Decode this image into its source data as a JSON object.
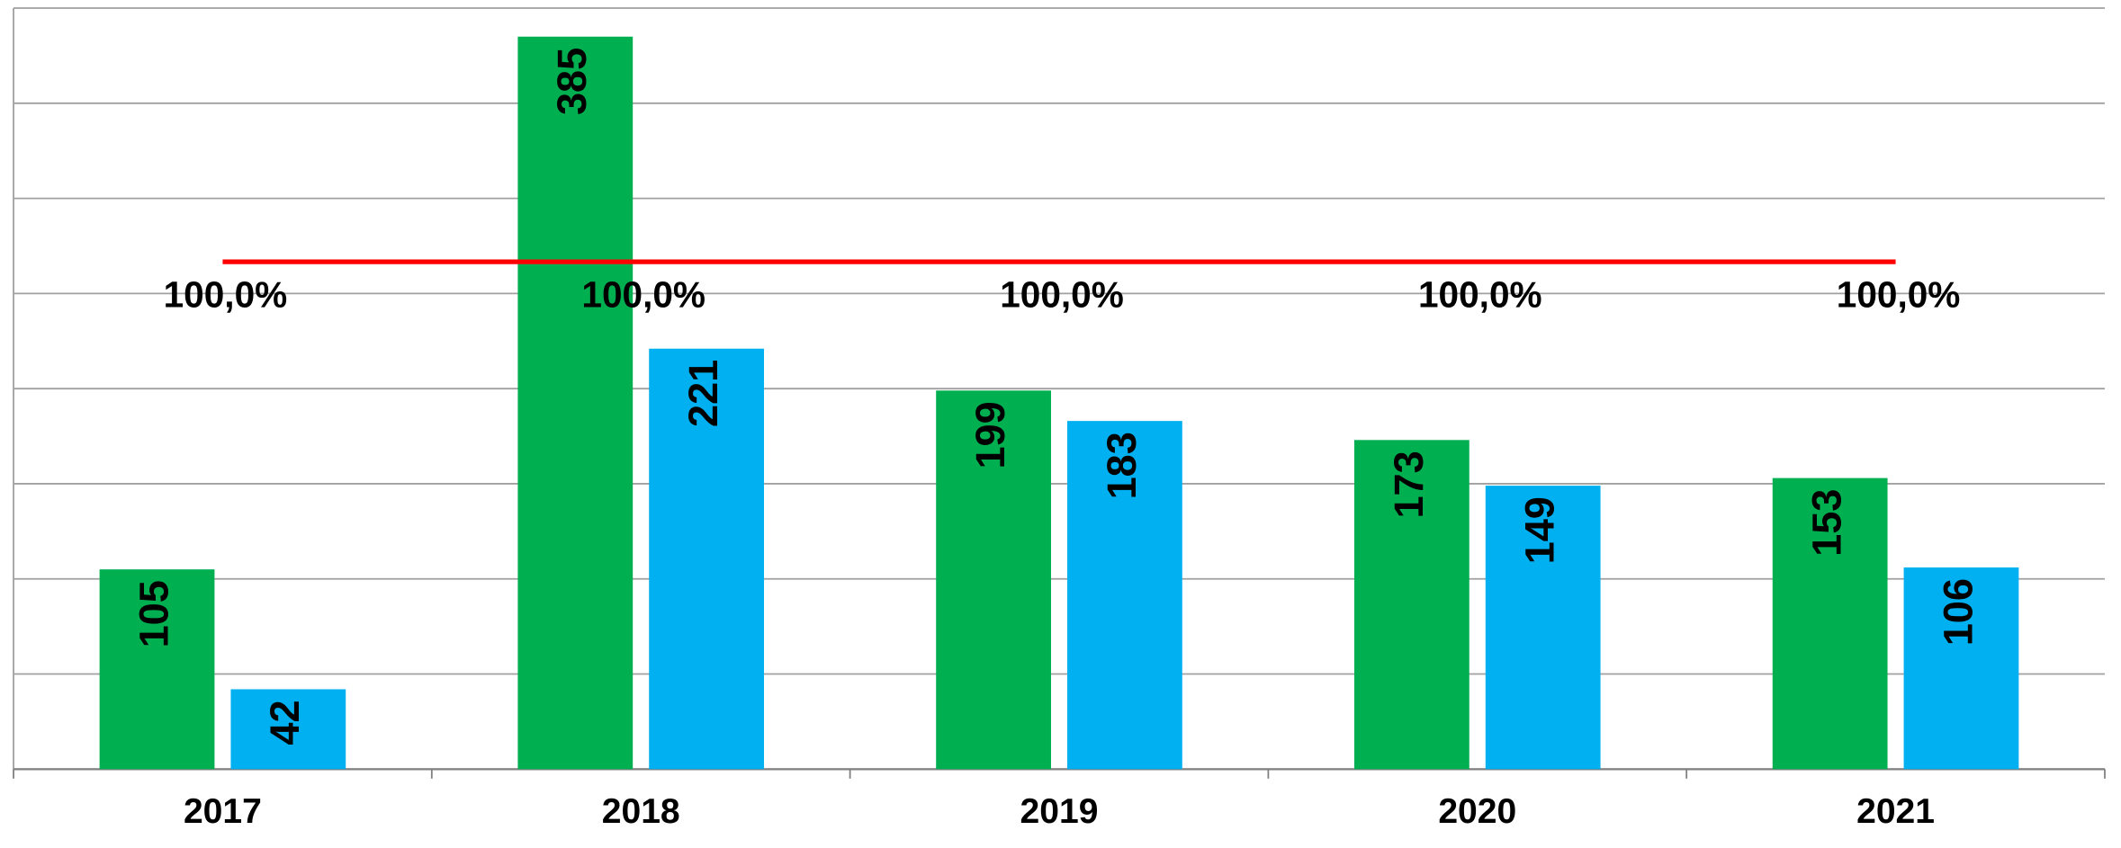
{
  "chart_data": {
    "type": "bar",
    "categories": [
      "2017",
      "2018",
      "2019",
      "2020",
      "2021"
    ],
    "series": [
      {
        "color": "#00b050",
        "values": [
          105,
          385,
          199,
          173,
          153
        ]
      },
      {
        "color": "#00b0f0",
        "values": [
          42,
          221,
          183,
          149,
          106
        ]
      },
      {
        "type": "line",
        "axis": "y2",
        "color": "#ff0000",
        "values": [
          100,
          100,
          100,
          100,
          100
        ],
        "value_labels": [
          "100,0%",
          "100,0%",
          "100,0%",
          "100,0%",
          "100,0%"
        ]
      }
    ],
    "ylim": [
      0,
      400
    ],
    "yticks": [
      0,
      50,
      100,
      150,
      200,
      250,
      300,
      350,
      400
    ],
    "y2lim": [
      0,
      150
    ],
    "grid": true
  }
}
